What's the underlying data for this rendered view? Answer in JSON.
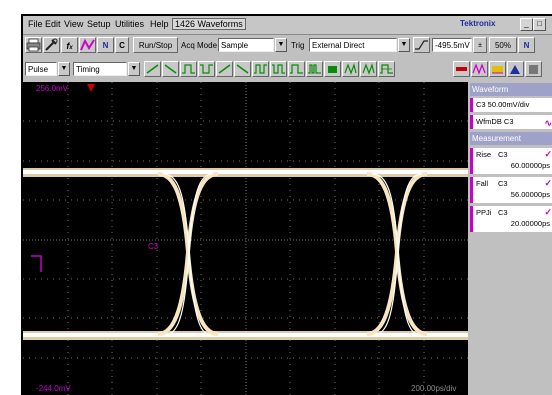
{
  "menu": {
    "file": "File",
    "edit": "Edit",
    "view": "View",
    "setup": "Setup",
    "utilities": "Utilities",
    "help": "Help",
    "waveform_count": "1426 Waveforms",
    "brand": "Tektronix"
  },
  "toolbar": {
    "run_stop": "Run/Stop",
    "acq_mode_label": "Acq Mode",
    "acq_mode_value": "Sample",
    "trig_label": "Trig",
    "trig_value": "External Direct",
    "trig_level": "-495.5mV",
    "percent": "50%",
    "c_label": "C"
  },
  "toolbar2": {
    "pulse": "Pulse",
    "timing": "Timing"
  },
  "screen": {
    "top_scale": "256.0mV",
    "bottom_scale": "-244.0mV",
    "bottom_right": "200.00ps/div",
    "channel_marker": "C3",
    "trace_label": "C3"
  },
  "side_panel": {
    "waveform_header": "Waveform",
    "channel_scale": "C3 50.00mV/div",
    "wfmdb": "WfmDB C3",
    "measurement_header": "Measurement",
    "measurements": [
      {
        "name": "Rise",
        "channel": "C3",
        "value": "60.00000ps"
      },
      {
        "name": "Fall",
        "channel": "C3",
        "value": "56.00000ps"
      },
      {
        "name": "PPJi",
        "channel": "C3",
        "value": "20.00000ps"
      }
    ]
  },
  "colors": {
    "trace": "#f7e6c0",
    "accent": "#c800c8",
    "grid": "#6e6e6e"
  }
}
